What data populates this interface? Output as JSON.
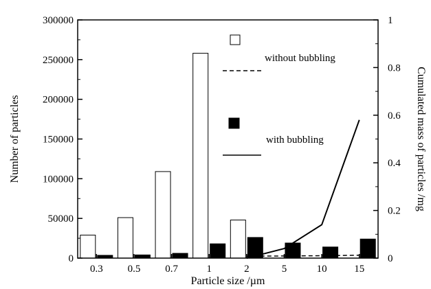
{
  "chart_data": {
    "type": "bar",
    "categories": [
      "0.3",
      "0.5",
      "0.7",
      "1",
      "2",
      "5",
      "10",
      "15"
    ],
    "xlabel": "Particle size /µm",
    "ylabel": "Number of particles",
    "y2label": "Cumulated mass of particles /mg",
    "ylim": [
      0,
      300000
    ],
    "y2lim": [
      0,
      1
    ],
    "yticks": [
      "0",
      "50000",
      "100000",
      "150000",
      "200000",
      "250000",
      "300000"
    ],
    "y2ticks": [
      "0",
      "0.2",
      "0.4",
      "0.6",
      "0.8",
      "1"
    ],
    "grid": false,
    "legend_placement": "top-right inside plot",
    "series": [
      {
        "name": "without bubbling",
        "kind": "bar",
        "axis": "left",
        "fill": "#ffffff",
        "values": [
          29000,
          51000,
          109000,
          258000,
          48000,
          null,
          null,
          null
        ]
      },
      {
        "name": "with bubbling",
        "kind": "bar",
        "axis": "left",
        "fill": "#000000",
        "values": [
          3500,
          4000,
          6000,
          18000,
          26000,
          19000,
          14000,
          24000
        ]
      },
      {
        "name": "without bubbling",
        "kind": "line",
        "axis": "right",
        "style": "dashed",
        "values": [
          null,
          null,
          null,
          null,
          0.008,
          0.009,
          0.01,
          0.012
        ]
      },
      {
        "name": "with bubbling",
        "kind": "line",
        "axis": "right",
        "style": "solid",
        "values": [
          null,
          null,
          null,
          null,
          0.0,
          0.04,
          0.14,
          0.58
        ]
      }
    ],
    "legend": [
      {
        "label": "without bubbling",
        "marker": "open-square",
        "line": "dashed"
      },
      {
        "label": "with bubbling",
        "marker": "filled-square",
        "line": "solid"
      }
    ]
  }
}
